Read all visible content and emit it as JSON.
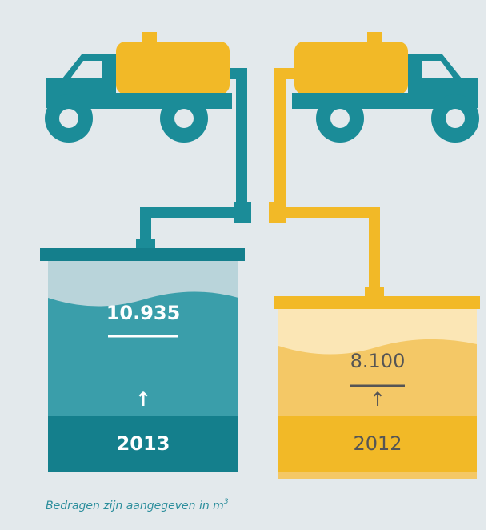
{
  "tanks": [
    {
      "value": "10.935",
      "arrow": "↑",
      "year": "2013"
    },
    {
      "value": "8.100",
      "arrow": "↑",
      "year": "2012"
    }
  ],
  "footnote": {
    "text": "Bedragen zijn aangegeven in m",
    "sup": "3"
  }
}
